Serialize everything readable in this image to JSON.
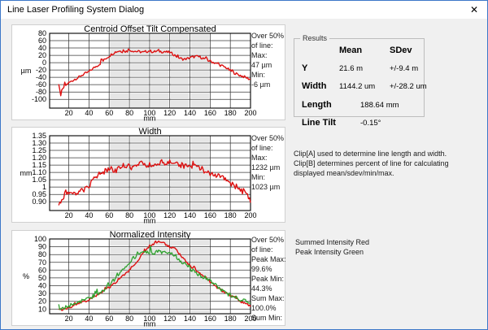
{
  "window": {
    "title": "Line Laser Profiling System Dialog",
    "close_label": "✕",
    "accent_border": "#3c77c8"
  },
  "results": {
    "legend": "Results",
    "col_mean": "Mean",
    "col_sdev": "SDev",
    "rows": [
      {
        "label": "Y",
        "mean": "21.6 m",
        "sdev": "+/-9.4 m"
      },
      {
        "label": "Width",
        "mean": "1144.2 um",
        "sdev": "+/-28.2 um"
      },
      {
        "label": "Length",
        "value": "188.64 mm"
      },
      {
        "label": "Line Tilt",
        "value": "-0.15°"
      }
    ]
  },
  "notes": {
    "clip": "Clip[A] used to determine line length and width.\nClip[B] determines percent of line for calculating displayed mean/sdev/min/max.",
    "legend_note": "Summed Intensity Red\nPeak Intensity Green"
  },
  "chart_data": [
    {
      "type": "line",
      "title": "Centroid Offset Tilt Compensated",
      "ylabel": "µm",
      "xlabel": "mm",
      "xmin": 1,
      "xmax": 200,
      "ymin": -124,
      "ymax": 80,
      "xticks": [
        20,
        40,
        60,
        80,
        100,
        120,
        140,
        160,
        180,
        200
      ],
      "yticks": [
        "80",
        "60",
        "40",
        "20",
        "0",
        "-20",
        "-40",
        "-60",
        "-80",
        "-100"
      ],
      "band": [
        60,
        160
      ],
      "band_color": "#e6e6e6",
      "grid": "on",
      "annotation": [
        "Over 50%",
        "of line:",
        "Max:",
        "47 µm",
        "Min:",
        "-6 µm"
      ],
      "series": [
        {
          "name": "centroid-offset",
          "color": "#dd1111",
          "width": 1.4,
          "noise": 3.5,
          "spike": 9,
          "points": [
            [
              10,
              -62
            ],
            [
              11,
              -75
            ],
            [
              12,
              -88
            ],
            [
              13,
              -78
            ],
            [
              15,
              -68
            ],
            [
              17,
              -62
            ],
            [
              20,
              -55
            ],
            [
              23,
              -50
            ],
            [
              26,
              -45
            ],
            [
              30,
              -40
            ],
            [
              33,
              -34
            ],
            [
              36,
              -30
            ],
            [
              40,
              -25
            ],
            [
              43,
              -18
            ],
            [
              46,
              -12
            ],
            [
              50,
              -5
            ],
            [
              53,
              2
            ],
            [
              56,
              10
            ],
            [
              60,
              18
            ],
            [
              63,
              24
            ],
            [
              66,
              29
            ],
            [
              70,
              32
            ],
            [
              74,
              30
            ],
            [
              78,
              31
            ],
            [
              82,
              33
            ],
            [
              86,
              31
            ],
            [
              90,
              30
            ],
            [
              94,
              28
            ],
            [
              98,
              31
            ],
            [
              100,
              32
            ],
            [
              104,
              29
            ],
            [
              108,
              32
            ],
            [
              112,
              30
            ],
            [
              116,
              29
            ],
            [
              120,
              28
            ],
            [
              124,
              22
            ],
            [
              128,
              15
            ],
            [
              132,
              10
            ],
            [
              136,
              9
            ],
            [
              140,
              14
            ],
            [
              144,
              16
            ],
            [
              148,
              17
            ],
            [
              152,
              13
            ],
            [
              156,
              8
            ],
            [
              160,
              4
            ],
            [
              164,
              0
            ],
            [
              168,
              -5
            ],
            [
              172,
              -9
            ],
            [
              176,
              -14
            ],
            [
              180,
              -22
            ],
            [
              184,
              -28
            ],
            [
              188,
              -33
            ],
            [
              192,
              -37
            ],
            [
              196,
              -41
            ],
            [
              200,
              -46
            ]
          ]
        }
      ]
    },
    {
      "type": "line",
      "title": "Width",
      "ylabel": "mm",
      "xlabel": "mm",
      "xmin": 1,
      "xmax": 200,
      "ymin": 0.84,
      "ymax": 1.35,
      "xticks": [
        20,
        40,
        60,
        80,
        100,
        120,
        140,
        160,
        180,
        200
      ],
      "yticks": [
        "1.35",
        "1.30",
        "1.25",
        "1.20",
        "1.15",
        "1.10",
        "1.05",
        "1",
        "0.95",
        "0.90"
      ],
      "band": [
        60,
        160
      ],
      "band_color": "#e6e6e6",
      "grid": "on",
      "annotation": [
        "Over 50%",
        "of line:",
        "Max:",
        "1232 µm",
        "Min:",
        "1023 µm"
      ],
      "series": [
        {
          "name": "width",
          "color": "#dd1111",
          "width": 1.4,
          "noise": 0.018,
          "spike": 0.04,
          "points": [
            [
              10,
              0.87
            ],
            [
              12,
              0.9
            ],
            [
              15,
              0.93
            ],
            [
              18,
              0.95
            ],
            [
              20,
              0.96
            ],
            [
              24,
              0.955
            ],
            [
              28,
              0.965
            ],
            [
              32,
              0.975
            ],
            [
              36,
              0.98
            ],
            [
              40,
              1.0
            ],
            [
              44,
              1.05
            ],
            [
              48,
              1.08
            ],
            [
              52,
              1.09
            ],
            [
              56,
              1.11
            ],
            [
              60,
              1.12
            ],
            [
              64,
              1.1
            ],
            [
              68,
              1.12
            ],
            [
              72,
              1.14
            ],
            [
              76,
              1.15
            ],
            [
              80,
              1.14
            ],
            [
              84,
              1.13
            ],
            [
              88,
              1.15
            ],
            [
              92,
              1.16
            ],
            [
              96,
              1.15
            ],
            [
              100,
              1.15
            ],
            [
              104,
              1.16
            ],
            [
              108,
              1.15
            ],
            [
              112,
              1.17
            ],
            [
              116,
              1.16
            ],
            [
              120,
              1.17
            ],
            [
              124,
              1.15
            ],
            [
              128,
              1.16
            ],
            [
              132,
              1.14
            ],
            [
              136,
              1.15
            ],
            [
              140,
              1.13
            ],
            [
              144,
              1.15
            ],
            [
              148,
              1.14
            ],
            [
              152,
              1.12
            ],
            [
              156,
              1.1
            ],
            [
              160,
              1.09
            ],
            [
              164,
              1.085
            ],
            [
              168,
              1.075
            ],
            [
              172,
              1.07
            ],
            [
              176,
              1.05
            ],
            [
              180,
              1.03
            ],
            [
              184,
              1.01
            ],
            [
              188,
              0.985
            ],
            [
              192,
              0.97
            ],
            [
              196,
              0.95
            ],
            [
              200,
              0.91
            ]
          ]
        }
      ]
    },
    {
      "type": "line",
      "title": "Normalized Intensity",
      "ylabel": "%",
      "xlabel": "mm",
      "xmin": 1,
      "xmax": 200,
      "ymin": 4,
      "ymax": 100,
      "xticks": [
        20,
        40,
        60,
        80,
        100,
        120,
        140,
        160,
        180,
        200
      ],
      "yticks": [
        "100",
        "90",
        "80",
        "70",
        "60",
        "50",
        "40",
        "30",
        "20",
        "10"
      ],
      "band": [
        60,
        160
      ],
      "band_color": "#e6e6e6",
      "grid": "on",
      "annotation": [
        "Over 50%",
        "of line:",
        "Peak Max:",
        "99.6%",
        "Peak Min:",
        "44.3%",
        "Sum Max:",
        "100.0%",
        "Sum Min:",
        "47.0%"
      ],
      "series": [
        {
          "name": "summed-intensity",
          "color": "#dd1111",
          "width": 1.4,
          "noise": 1.5,
          "spike": 3,
          "points": [
            [
              10,
              8
            ],
            [
              15,
              10
            ],
            [
              20,
              12
            ],
            [
              25,
              14
            ],
            [
              30,
              17
            ],
            [
              35,
              19
            ],
            [
              40,
              22
            ],
            [
              45,
              26
            ],
            [
              50,
              30
            ],
            [
              55,
              34
            ],
            [
              60,
              38
            ],
            [
              65,
              43
            ],
            [
              70,
              48
            ],
            [
              75,
              54
            ],
            [
              80,
              60
            ],
            [
              85,
              68
            ],
            [
              90,
              75
            ],
            [
              95,
              84
            ],
            [
              100,
              91
            ],
            [
              105,
              94
            ],
            [
              110,
              97
            ],
            [
              115,
              94
            ],
            [
              120,
              90
            ],
            [
              125,
              88
            ],
            [
              130,
              80
            ],
            [
              135,
              73
            ],
            [
              140,
              66
            ],
            [
              145,
              60
            ],
            [
              150,
              55
            ],
            [
              155,
              50
            ],
            [
              160,
              45
            ],
            [
              165,
              40
            ],
            [
              170,
              35
            ],
            [
              175,
              31
            ],
            [
              180,
              27
            ],
            [
              185,
              24
            ],
            [
              190,
              20
            ],
            [
              195,
              17
            ],
            [
              200,
              14
            ]
          ]
        },
        {
          "name": "peak-intensity",
          "color": "#2ea12e",
          "width": 1.3,
          "noise": 2.5,
          "spike": 8,
          "points": [
            [
              10,
              10
            ],
            [
              15,
              12
            ],
            [
              20,
              14
            ],
            [
              25,
              16
            ],
            [
              30,
              19
            ],
            [
              35,
              21
            ],
            [
              40,
              24
            ],
            [
              45,
              27
            ],
            [
              50,
              30
            ],
            [
              55,
              35
            ],
            [
              60,
              41
            ],
            [
              65,
              48
            ],
            [
              70,
              55
            ],
            [
              75,
              62
            ],
            [
              80,
              70
            ],
            [
              85,
              77
            ],
            [
              90,
              81
            ],
            [
              95,
              83
            ],
            [
              100,
              83
            ],
            [
              105,
              82
            ],
            [
              110,
              84
            ],
            [
              115,
              82
            ],
            [
              120,
              83
            ],
            [
              125,
              79
            ],
            [
              130,
              72
            ],
            [
              135,
              68
            ],
            [
              140,
              62
            ],
            [
              145,
              57
            ],
            [
              150,
              52
            ],
            [
              155,
              50
            ],
            [
              160,
              46
            ],
            [
              165,
              42
            ],
            [
              170,
              36
            ],
            [
              175,
              31
            ],
            [
              180,
              28
            ],
            [
              185,
              25
            ],
            [
              190,
              22
            ],
            [
              195,
              20
            ],
            [
              200,
              16
            ]
          ]
        }
      ]
    }
  ]
}
